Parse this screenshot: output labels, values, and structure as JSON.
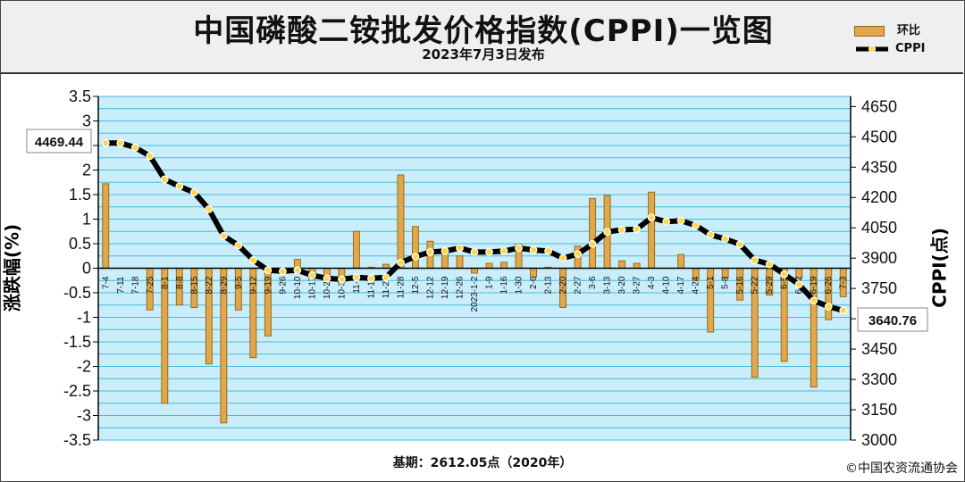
{
  "header": {
    "title": "中国磷酸二铵批发价格指数(CPPI)一览图",
    "subtitle": "2023年7月3日发布"
  },
  "legend": {
    "bar_label": "环比",
    "line_label": "CPPI"
  },
  "footer": {
    "base": "基期：2612.05点（2020年）",
    "copyright": "©中国农资流通协会"
  },
  "axes": {
    "left_label": "涨跌幅(%)",
    "right_label": "CPPI(点)"
  },
  "callouts": {
    "start": "4469.44",
    "end": "3640.76"
  },
  "colors": {
    "bar": "#e0a84a",
    "bar_edge": "#9a6a1c",
    "line": "#000000",
    "marker": "#ffd84a",
    "plot_bg": "#c9eefa",
    "grid": "#4ab8dd"
  },
  "chart_data": {
    "type": "bar",
    "grid": true,
    "legend_position": "top-right",
    "left_axis": {
      "ylim": [
        -3.5,
        3.5
      ],
      "ticks": [
        "3.5",
        "3",
        "2.5",
        "2",
        "1.5",
        "1",
        "0.5",
        "0",
        "-0.5",
        "-1",
        "-1.5",
        "-2",
        "-2.5",
        "-3",
        "-3.5"
      ]
    },
    "right_axis": {
      "ylim": [
        3000,
        4700
      ],
      "ticks": [
        "4650",
        "4500",
        "4350",
        "4200",
        "4050",
        "3900",
        "3750",
        "3600",
        "3450",
        "3300",
        "3150",
        "3000"
      ]
    },
    "categories": [
      "7-4",
      "7-11",
      "7-18",
      "7-25",
      "8-1",
      "8-8",
      "8-15",
      "8-22",
      "8-29",
      "9-5",
      "9-12",
      "9-19",
      "9-26",
      "10-10",
      "10-17",
      "10-24",
      "10-31",
      "11-7",
      "11-14",
      "11-21",
      "11-28",
      "12-5",
      "12-12",
      "12-19",
      "12-26",
      "2023-1-2",
      "1-9",
      "1-16",
      "1-30",
      "2-6",
      "2-13",
      "2-20",
      "2-27",
      "3-6",
      "3-13",
      "3-20",
      "3-27",
      "4-3",
      "4-10",
      "4-17",
      "4-24",
      "5-1",
      "5-8",
      "5-16",
      "5-22",
      "5-29",
      "6-5",
      "6-12",
      "6-19",
      "6-26",
      "7-3"
    ],
    "series": [
      {
        "name": "环比",
        "type": "bar",
        "axis": "left",
        "values": [
          1.72,
          0,
          0,
          -0.85,
          -2.75,
          -0.75,
          -0.8,
          -1.95,
          -3.15,
          -0.85,
          -1.82,
          -1.38,
          -0.08,
          0.18,
          -0.12,
          -0.22,
          -0.28,
          0.75,
          0.02,
          0.08,
          1.9,
          0.85,
          0.55,
          0.3,
          0.25,
          -0.1,
          0.1,
          0.12,
          0.48,
          -0.18,
          0.02,
          -0.8,
          0.45,
          1.42,
          1.48,
          0.15,
          0.1,
          1.55,
          0,
          0.28,
          -0.25,
          -1.3,
          -0.2,
          -0.65,
          -2.22,
          -0.55,
          -1.9,
          -0.2,
          -2.42,
          -1.05,
          -0.58
        ]
      },
      {
        "name": "CPPI",
        "type": "line",
        "axis": "right",
        "values": [
          4469.44,
          4469,
          4447,
          4405,
          4290,
          4255,
          4225,
          4142,
          4010,
          3963,
          3890,
          3840,
          3835,
          3840,
          3815,
          3800,
          3795,
          3805,
          3800,
          3805,
          3878,
          3908,
          3930,
          3935,
          3950,
          3930,
          3930,
          3935,
          3950,
          3940,
          3935,
          3900,
          3920,
          3970,
          4030,
          4040,
          4043,
          4100,
          4080,
          4085,
          4062,
          4015,
          3995,
          3968,
          3890,
          3870,
          3820,
          3770,
          3690,
          3660,
          3640.76
        ]
      }
    ]
  }
}
